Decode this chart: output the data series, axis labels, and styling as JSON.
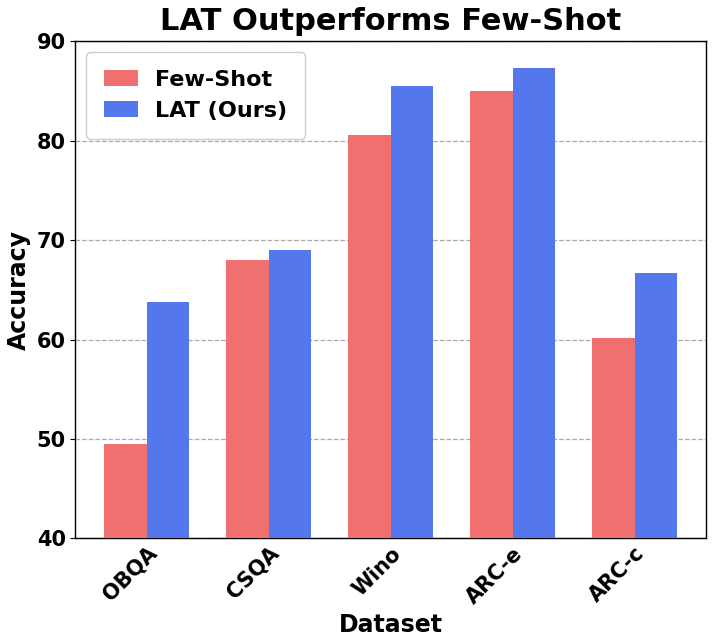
{
  "title": "LAT Outperforms Few-Shot",
  "xlabel": "Dataset",
  "ylabel": "Accuracy",
  "categories": [
    "OBQA",
    "CSQA",
    "Wino",
    "ARC-e",
    "ARC-c"
  ],
  "few_shot_values": [
    49.5,
    68.0,
    80.6,
    85.0,
    60.2
  ],
  "lat_values": [
    63.8,
    69.0,
    85.5,
    87.3,
    66.7
  ],
  "few_shot_color": "#F07070",
  "lat_color": "#5577EE",
  "ylim": [
    40,
    90
  ],
  "yticks": [
    40,
    50,
    60,
    70,
    80,
    90
  ],
  "grid_color": "#AAAAAA",
  "legend_labels": [
    "Few-Shot",
    "LAT (Ours)"
  ],
  "bar_width": 0.35,
  "title_fontsize": 22,
  "label_fontsize": 17,
  "tick_fontsize": 15,
  "legend_fontsize": 16
}
